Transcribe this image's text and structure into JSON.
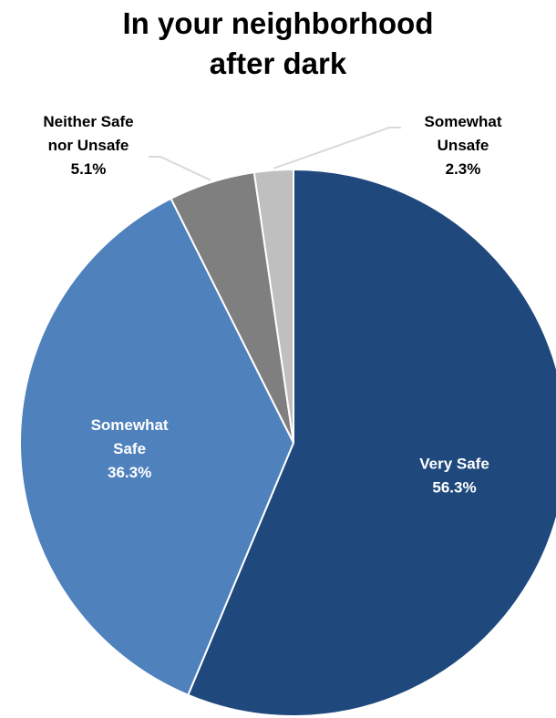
{
  "chart_data": {
    "type": "pie",
    "title_lines": [
      "In your neighborhood",
      "after dark"
    ],
    "slices": [
      {
        "label_lines": [
          "Very Safe"
        ],
        "value": 56.3,
        "value_label": "56.3%",
        "color": "#1f497d",
        "label_color": "#ffffff",
        "label_position": "inside"
      },
      {
        "label_lines": [
          "Somewhat",
          "Safe"
        ],
        "value": 36.3,
        "value_label": "36.3%",
        "color": "#4f81bd",
        "label_color": "#ffffff",
        "label_position": "inside"
      },
      {
        "label_lines": [
          "Neither Safe",
          "nor Unsafe"
        ],
        "value": 5.1,
        "value_label": "5.1%",
        "color": "#7f7f7f",
        "label_color": "#000000",
        "label_position": "outside-left"
      },
      {
        "label_lines": [
          "Somewhat",
          "Unsafe"
        ],
        "value": 2.3,
        "value_label": "2.3%",
        "color": "#bfbfbf",
        "label_color": "#000000",
        "label_position": "outside-right"
      }
    ],
    "start": "12 o'clock",
    "direction": "clockwise",
    "slice_border_color": "#ffffff",
    "leader_line_color": "#d9d9d9",
    "legend": "none"
  }
}
